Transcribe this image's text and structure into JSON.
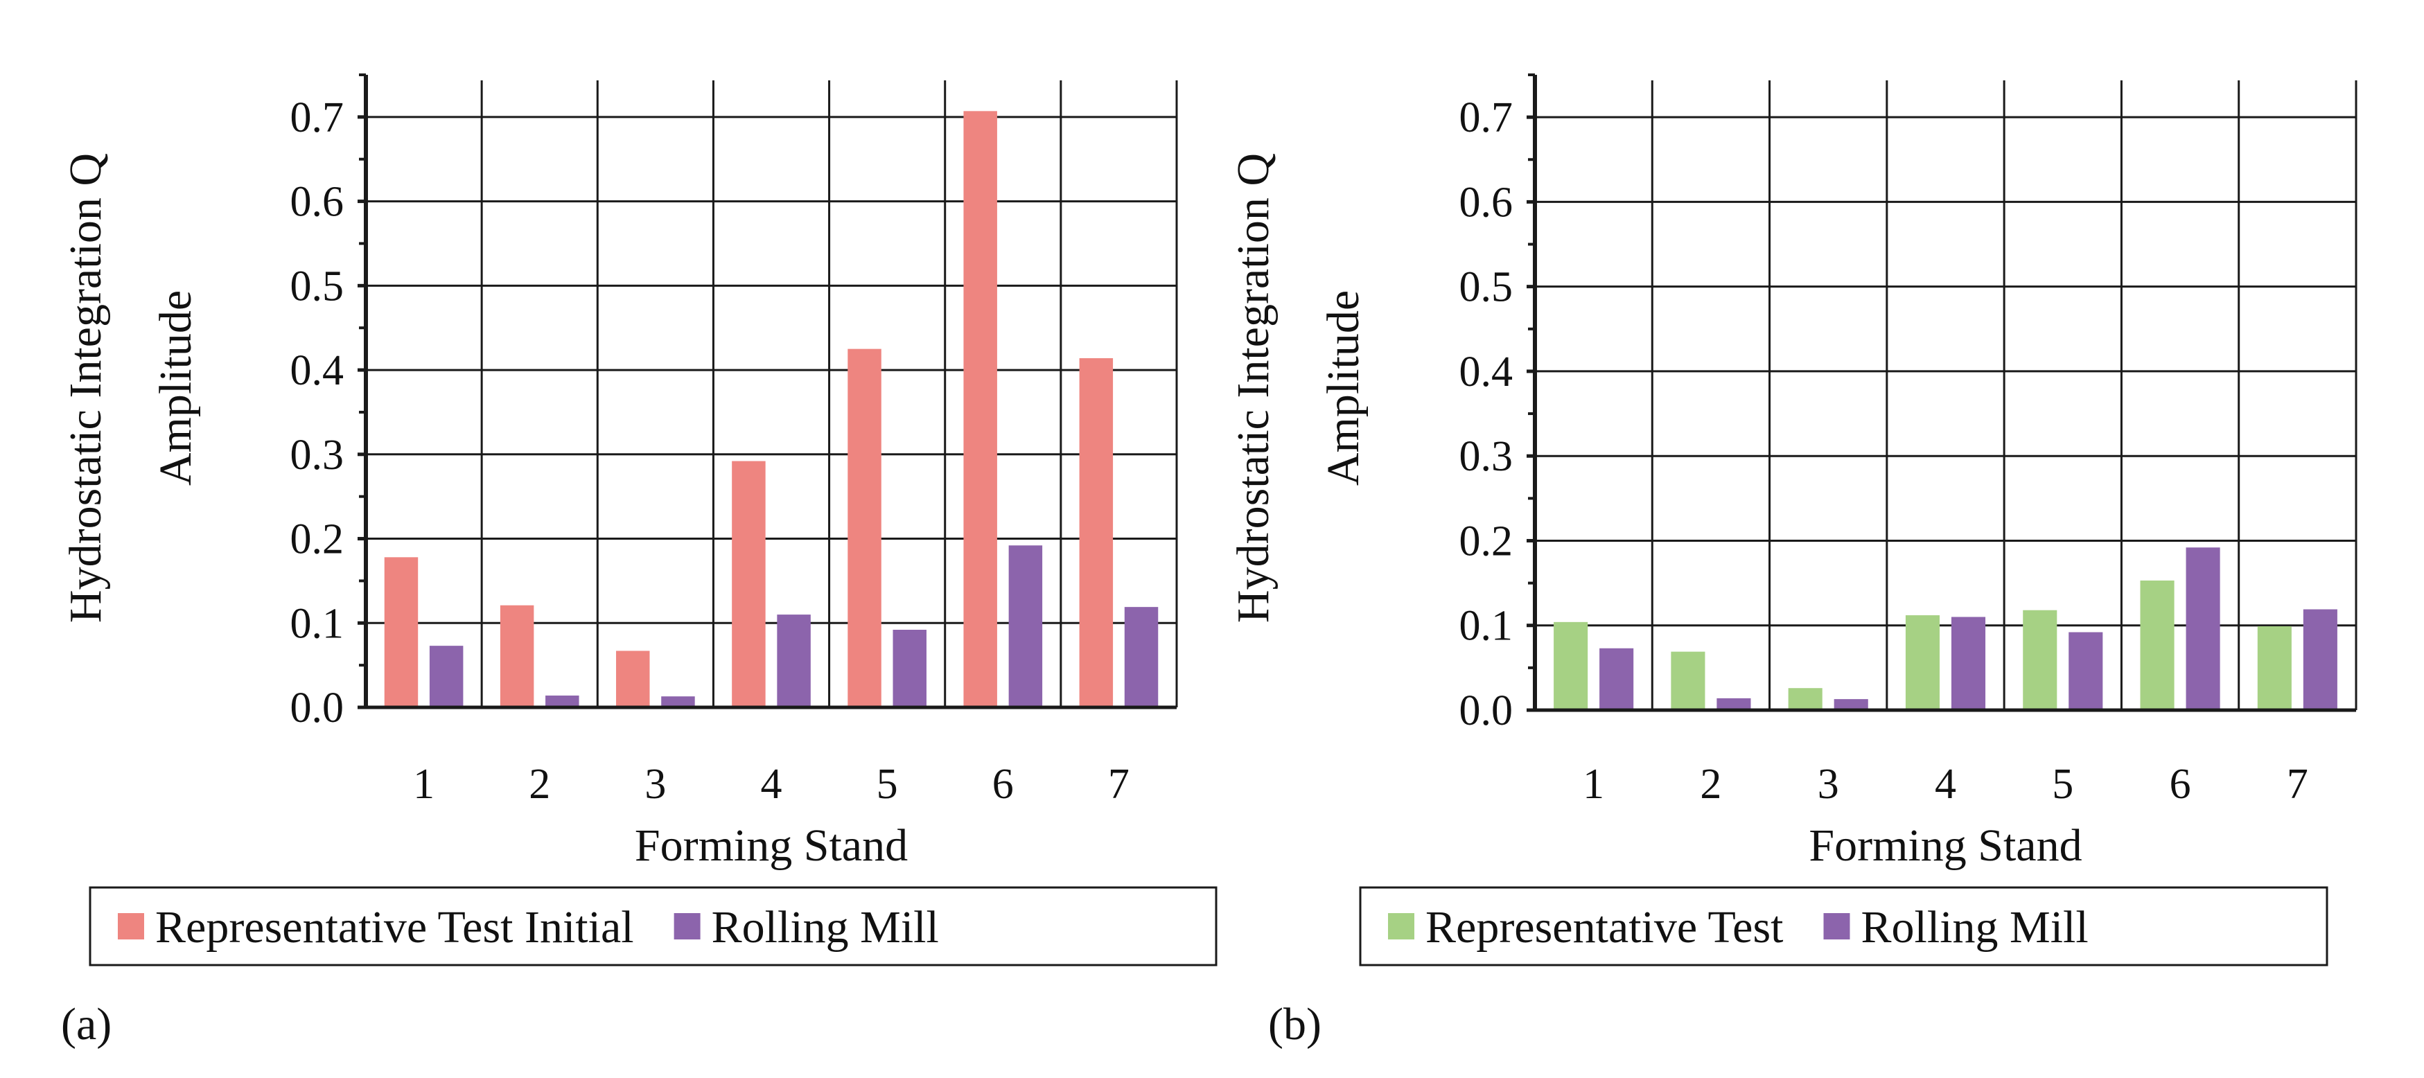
{
  "chart_data": [
    {
      "type": "bar",
      "panel_label": "(a)",
      "xlabel": "Forming Stand",
      "ylabel_lines": [
        "Hydrostatic Integration Q",
        "Amplitude"
      ],
      "categories": [
        "1",
        "2",
        "3",
        "4",
        "5",
        "6",
        "7"
      ],
      "ylim": [
        0,
        0.75
      ],
      "yticks": [
        "0.0",
        "0.1",
        "0.2",
        "0.3",
        "0.4",
        "0.5",
        "0.6",
        "0.7"
      ],
      "grid": true,
      "legend_position": "bottom",
      "series": [
        {
          "name": "Representative Test Initial",
          "color": "#ee8580",
          "values": [
            0.178,
            0.121,
            0.067,
            0.292,
            0.425,
            0.707,
            0.414
          ]
        },
        {
          "name": "Rolling Mill",
          "color": "#8c64ac",
          "values": [
            0.073,
            0.014,
            0.013,
            0.11,
            0.092,
            0.192,
            0.119
          ]
        }
      ]
    },
    {
      "type": "bar",
      "panel_label": "(b)",
      "xlabel": "Forming Stand",
      "ylabel_lines": [
        "Hydrostatic Integration Q",
        "Amplitude"
      ],
      "categories": [
        "1",
        "2",
        "3",
        "4",
        "5",
        "6",
        "7"
      ],
      "ylim": [
        0,
        0.75
      ],
      "yticks": [
        "0.0",
        "0.1",
        "0.2",
        "0.3",
        "0.4",
        "0.5",
        "0.6",
        "0.7"
      ],
      "grid": true,
      "legend_position": "bottom",
      "series": [
        {
          "name": "Representative Test",
          "color": "#a6d184",
          "values": [
            0.104,
            0.069,
            0.026,
            0.112,
            0.118,
            0.153,
            0.099
          ]
        },
        {
          "name": "Rolling Mill",
          "color": "#8c64ac",
          "values": [
            0.073,
            0.014,
            0.013,
            0.11,
            0.092,
            0.192,
            0.119
          ]
        }
      ]
    }
  ]
}
